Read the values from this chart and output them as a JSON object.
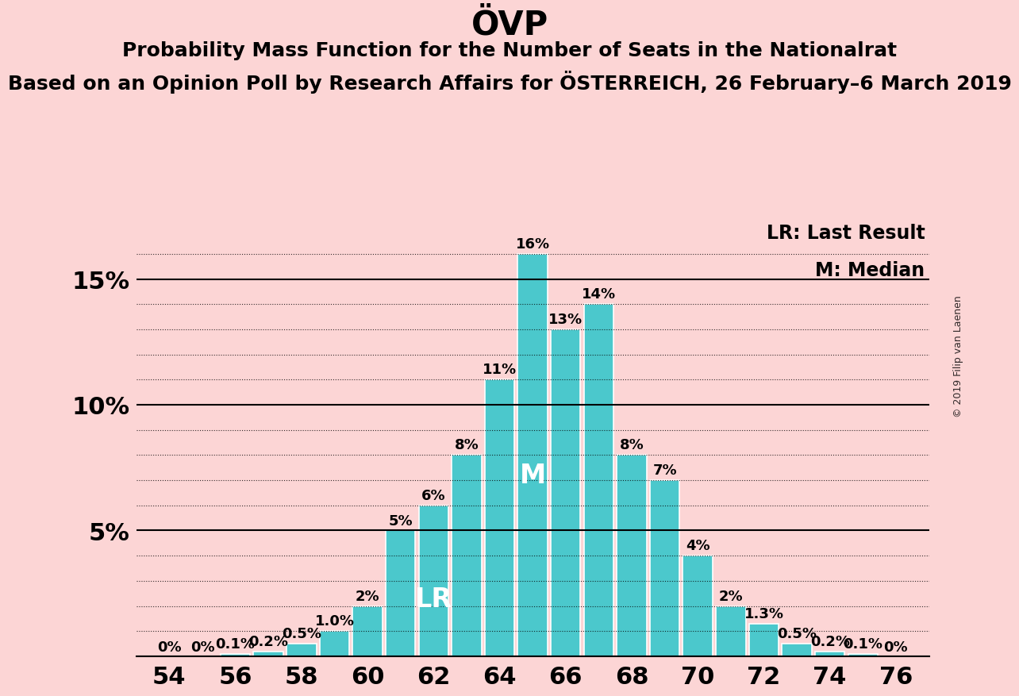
{
  "title": "ÖVP",
  "subtitle1": "Probability Mass Function for the Number of Seats in the Nationalrat",
  "subtitle2": "Based on an Opinion Poll by Research Affairs for ÖSTERREICH, 26 February–6 March 2019",
  "watermark": "© 2019 Filip van Laenen",
  "legend_lr": "LR: Last Result",
  "legend_m": "M: Median",
  "background_color": "#fcd5d5",
  "bar_color": "#4bc8cc",
  "bar_edge_color": "#ffffff",
  "seats": [
    54,
    55,
    56,
    57,
    58,
    59,
    60,
    61,
    62,
    63,
    64,
    65,
    66,
    67,
    68,
    69,
    70,
    71,
    72,
    73,
    74,
    75,
    76
  ],
  "values": [
    0.0,
    0.0,
    0.1,
    0.2,
    0.5,
    1.0,
    2.0,
    5.0,
    6.0,
    8.0,
    11.0,
    16.0,
    13.0,
    14.0,
    8.0,
    7.0,
    4.0,
    2.0,
    1.3,
    0.5,
    0.2,
    0.1,
    0.0
  ],
  "labels": [
    "0%",
    "0%",
    "0.1%",
    "0.2%",
    "0.5%",
    "1.0%",
    "2%",
    "5%",
    "6%",
    "8%",
    "11%",
    "16%",
    "13%",
    "14%",
    "8%",
    "7%",
    "4%",
    "2%",
    "1.3%",
    "0.5%",
    "0.2%",
    "0.1%",
    "0%"
  ],
  "ylim": [
    0,
    17.5
  ],
  "ytick_positions": [
    5,
    10,
    15
  ],
  "ytick_labels": [
    "5%",
    "10%",
    "15%"
  ],
  "grid_lines": [
    1,
    2,
    3,
    4,
    6,
    7,
    8,
    9,
    11,
    12,
    13,
    14,
    16
  ],
  "solid_lines": [
    0,
    5,
    10,
    15
  ],
  "xlim": [
    53,
    77
  ],
  "xticks": [
    54,
    56,
    58,
    60,
    62,
    64,
    66,
    68,
    70,
    72,
    74,
    76
  ],
  "lr_seat": 62,
  "median_seat": 65,
  "lr_label": "LR",
  "median_label": "M",
  "title_fontsize": 30,
  "subtitle1_fontsize": 18,
  "subtitle2_fontsize": 18,
  "axis_tick_fontsize": 22,
  "bar_label_fontsize": 13,
  "legend_fontsize": 17,
  "watermark_fontsize": 9,
  "lr_m_label_fontsize": 24,
  "bar_width": 0.9
}
